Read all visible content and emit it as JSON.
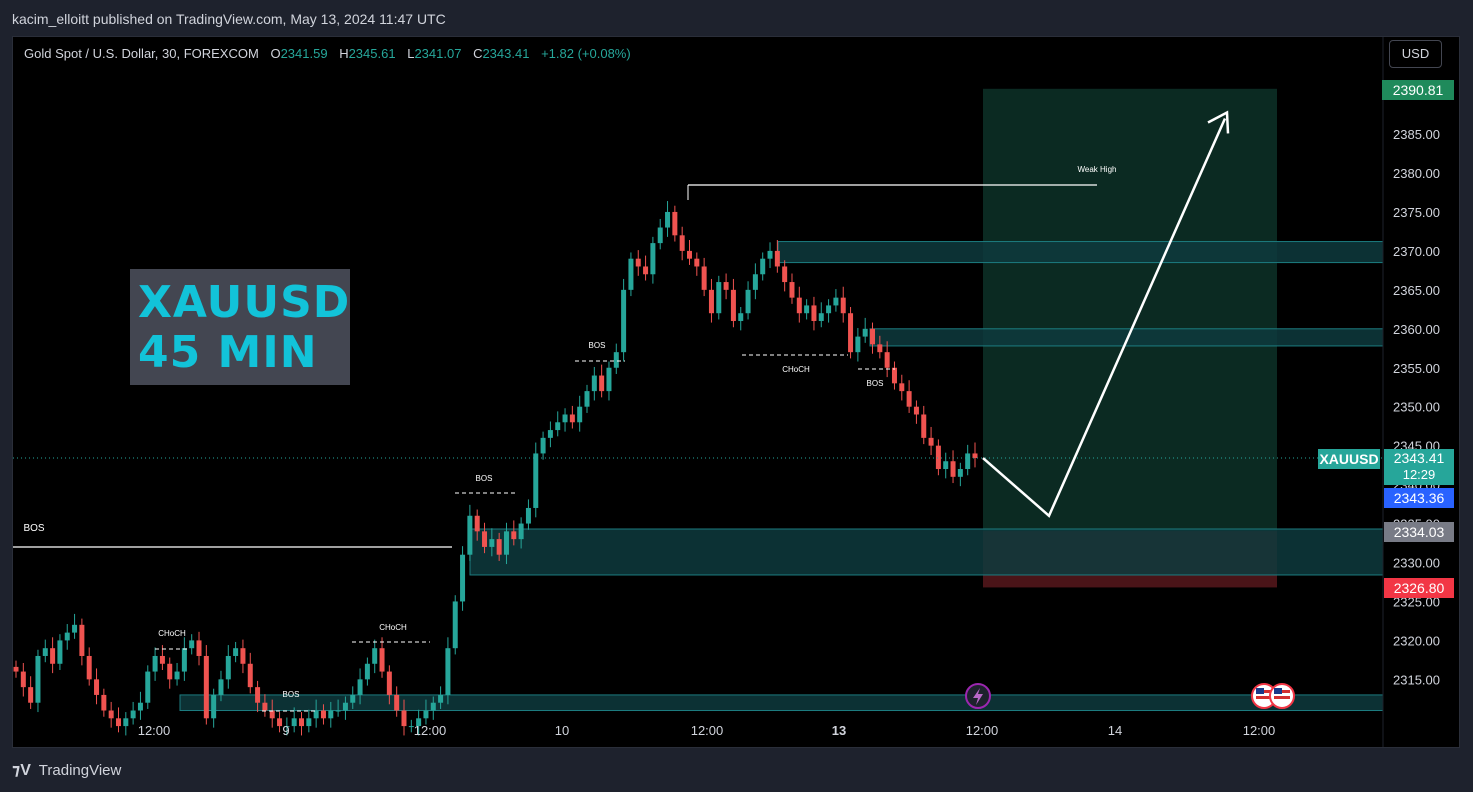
{
  "header": {
    "publisher": "kacim_elloitt published on TradingView.com, May 13, 2024 11:47 UTC"
  },
  "legend": {
    "symbol": "Gold Spot / U.S. Dollar, 30, FOREXCOM",
    "open_label": "O",
    "open": "2341.59",
    "high_label": "H",
    "high": "2345.61",
    "low_label": "L",
    "low": "2341.07",
    "close_label": "C",
    "close": "2343.41",
    "change": "+1.82 (+0.08%)"
  },
  "currency_button": "USD",
  "overlay_text": {
    "line1": "XAUUSD",
    "line2": "45 MIN"
  },
  "price_axis": {
    "ticks": [
      "2385.00",
      "2380.00",
      "2375.00",
      "2370.00",
      "2365.00",
      "2360.00",
      "2355.00",
      "2350.00",
      "2345.00",
      "2340.00",
      "2335.00",
      "2330.00",
      "2325.00",
      "2320.00",
      "2315.00"
    ],
    "tags": {
      "target": "2390.81",
      "symbol_label": "XAUUSD",
      "last_price": "2343.41",
      "countdown": "12:29",
      "bid": "2343.36",
      "entry": "2334.03",
      "stop": "2326.80"
    }
  },
  "time_axis": {
    "labels": [
      "12:00",
      "9",
      "12:00",
      "10",
      "12:00",
      "13",
      "12:00",
      "14",
      "12:00"
    ]
  },
  "annotations": {
    "bos_left": "BOS",
    "choch_1": "CHoCH",
    "bos_low": "BOS",
    "choch_2": "CHoCH",
    "bos_mid": "BOS",
    "bos_high": "BOS",
    "choch_3": "CHoCH",
    "bos_right": "BOS",
    "weak_high": "Weak High"
  },
  "colors": {
    "up": "#26a69a",
    "down": "#ef5350",
    "zone": "#0e3a3d",
    "target_zone": "#0b2a22",
    "stop_zone": "#4a1418",
    "accent": "#2962ff"
  },
  "footer": {
    "brand": "TradingView"
  },
  "chart_data": {
    "type": "candlestick",
    "symbol": "XAUUSD",
    "timeframe": "30",
    "ylim": [
      2311,
      2391
    ],
    "closes": [
      2316,
      2314,
      2312,
      2318,
      2319,
      2317,
      2320,
      2321,
      2322,
      2318,
      2315,
      2313,
      2311,
      2310,
      2309,
      2310,
      2311,
      2312,
      2316,
      2318,
      2317,
      2315,
      2316,
      2319,
      2320,
      2318,
      2310,
      2313,
      2315,
      2318,
      2319,
      2317,
      2314,
      2312,
      2311,
      2310,
      2309,
      2309,
      2310,
      2309,
      2310,
      2311,
      2310,
      2311,
      2311,
      2312,
      2313,
      2315,
      2317,
      2319,
      2316,
      2313,
      2311,
      2309,
      2309,
      2310,
      2311,
      2312,
      2313,
      2319,
      2325,
      2331,
      2336,
      2334,
      2332,
      2333,
      2331,
      2334,
      2333,
      2335,
      2337,
      2344,
      2346,
      2347,
      2348,
      2349,
      2348,
      2350,
      2352,
      2354,
      2352,
      2355,
      2357,
      2365,
      2369,
      2368,
      2367,
      2371,
      2373,
      2375,
      2372,
      2370,
      2369,
      2368,
      2365,
      2362,
      2366,
      2365,
      2361,
      2362,
      2365,
      2367,
      2369,
      2370,
      2368,
      2366,
      2364,
      2362,
      2363,
      2361,
      2362,
      2363,
      2364,
      2362,
      2357,
      2359,
      2360,
      2358,
      2357,
      2355,
      2353,
      2352,
      2350,
      2349,
      2346,
      2345,
      2342,
      2343,
      2341,
      2342,
      2344,
      2343.41
    ],
    "zones": [
      {
        "from": 2368.5,
        "to": 2371.2
      },
      {
        "from": 2357.8,
        "to": 2360.0
      },
      {
        "from": 2328.4,
        "to": 2334.3
      },
      {
        "from": 2311.0,
        "to": 2313.0
      }
    ],
    "position": {
      "entry": 2334.03,
      "target": 2390.81,
      "stop": 2326.8
    },
    "projection": [
      2343.4,
      2336,
      2387
    ]
  }
}
